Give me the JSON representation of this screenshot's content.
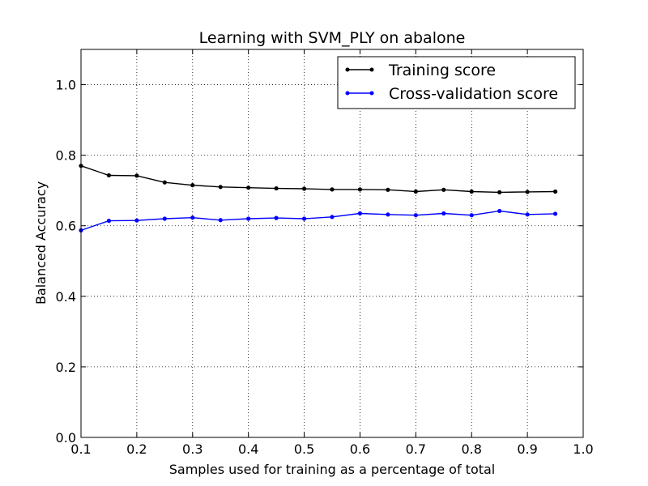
{
  "chart_data": {
    "type": "line",
    "title": "Learning with SVM_PLY on abalone",
    "xlabel": "Samples used for training as a percentage of total",
    "ylabel": "Balanced Accuracy",
    "xlim": [
      0.1,
      1.0
    ],
    "ylim": [
      0.0,
      1.1
    ],
    "xticks": [
      0.1,
      0.2,
      0.3,
      0.4,
      0.5,
      0.6,
      0.7,
      0.8,
      0.9,
      1.0
    ],
    "xtick_labels": [
      "0.1",
      "0.2",
      "0.3",
      "0.4",
      "0.5",
      "0.6",
      "0.7",
      "0.8",
      "0.9",
      "1.0"
    ],
    "yticks": [
      0.0,
      0.2,
      0.4,
      0.6,
      0.8,
      1.0
    ],
    "ytick_labels": [
      "0.0",
      "0.2",
      "0.4",
      "0.6",
      "0.8",
      "1.0"
    ],
    "grid": true,
    "legend_position": "top-right",
    "x": [
      0.1,
      0.15,
      0.2,
      0.25,
      0.3,
      0.35,
      0.4,
      0.45,
      0.5,
      0.55,
      0.6,
      0.65,
      0.7,
      0.75,
      0.8,
      0.85,
      0.9,
      0.95
    ],
    "series": [
      {
        "name": "Training score",
        "color": "#000000",
        "values": [
          0.77,
          0.743,
          0.742,
          0.723,
          0.715,
          0.71,
          0.708,
          0.706,
          0.705,
          0.703,
          0.703,
          0.702,
          0.697,
          0.702,
          0.697,
          0.695,
          0.696,
          0.697
        ]
      },
      {
        "name": "Cross-validation score",
        "color": "#0000ff",
        "values": [
          0.587,
          0.614,
          0.615,
          0.62,
          0.623,
          0.616,
          0.62,
          0.622,
          0.62,
          0.625,
          0.635,
          0.632,
          0.63,
          0.635,
          0.63,
          0.642,
          0.632,
          0.634
        ]
      }
    ]
  }
}
